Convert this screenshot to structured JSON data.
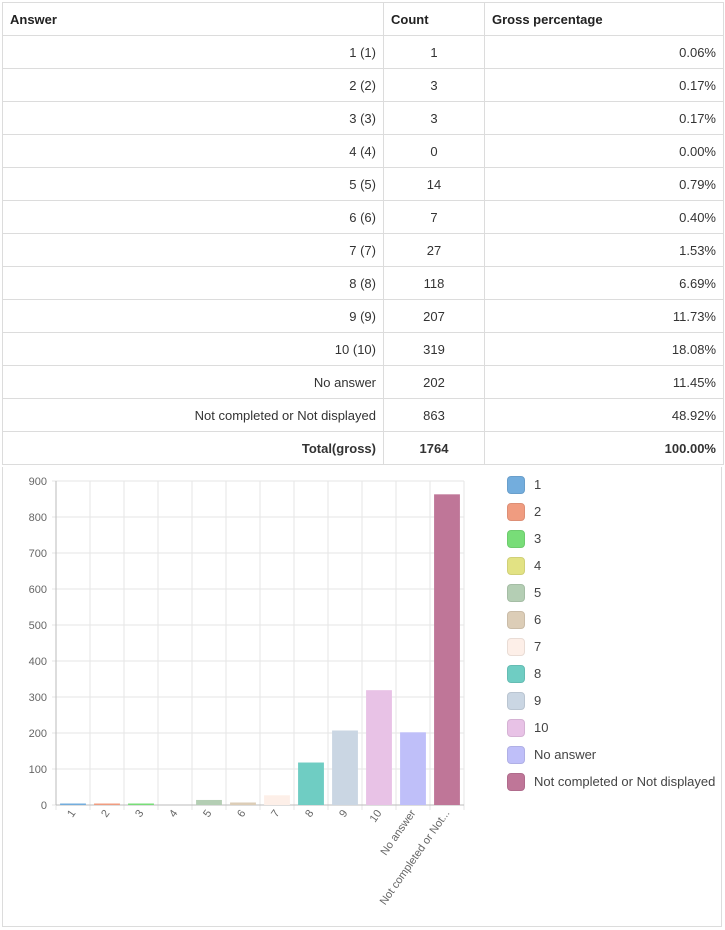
{
  "table": {
    "headers": {
      "answer": "Answer",
      "count": "Count",
      "pct": "Gross percentage"
    },
    "rows": [
      {
        "answer": "1 (1)",
        "count": "1",
        "pct": "0.06%"
      },
      {
        "answer": "2 (2)",
        "count": "3",
        "pct": "0.17%"
      },
      {
        "answer": "3 (3)",
        "count": "3",
        "pct": "0.17%"
      },
      {
        "answer": "4 (4)",
        "count": "0",
        "pct": "0.00%"
      },
      {
        "answer": "5 (5)",
        "count": "14",
        "pct": "0.79%"
      },
      {
        "answer": "6 (6)",
        "count": "7",
        "pct": "0.40%"
      },
      {
        "answer": "7 (7)",
        "count": "27",
        "pct": "1.53%"
      },
      {
        "answer": "8 (8)",
        "count": "118",
        "pct": "6.69%"
      },
      {
        "answer": "9 (9)",
        "count": "207",
        "pct": "11.73%"
      },
      {
        "answer": "10 (10)",
        "count": "319",
        "pct": "18.08%"
      },
      {
        "answer": "No answer",
        "count": "202",
        "pct": "11.45%"
      },
      {
        "answer": "Not completed or Not displayed",
        "count": "863",
        "pct": "48.92%"
      }
    ],
    "total": {
      "answer": "Total(gross)",
      "count": "1764",
      "pct": "100.00%"
    }
  },
  "chart_data": {
    "type": "bar",
    "categories": [
      "1",
      "2",
      "3",
      "4",
      "5",
      "6",
      "7",
      "8",
      "9",
      "10",
      "No answer",
      "Not completed or Not..."
    ],
    "values": [
      1,
      3,
      3,
      0,
      14,
      7,
      27,
      118,
      207,
      319,
      202,
      863
    ],
    "colors": [
      "#73addd",
      "#f09c80",
      "#78dd78",
      "#e2e283",
      "#b4ceb4",
      "#dccdb7",
      "#fdefe8",
      "#6fcdc3",
      "#cad6e3",
      "#e8c2e6",
      "#bfbff9",
      "#bf7698"
    ],
    "yticks": [
      0,
      100,
      200,
      300,
      400,
      500,
      600,
      700,
      800,
      900
    ],
    "ylim": [
      0,
      900
    ],
    "grid": true,
    "legend_position": "right",
    "legend": [
      "1",
      "2",
      "3",
      "4",
      "5",
      "6",
      "7",
      "8",
      "9",
      "10",
      "No answer",
      "Not completed or Not displayed"
    ],
    "xlabel": "",
    "ylabel": ""
  }
}
